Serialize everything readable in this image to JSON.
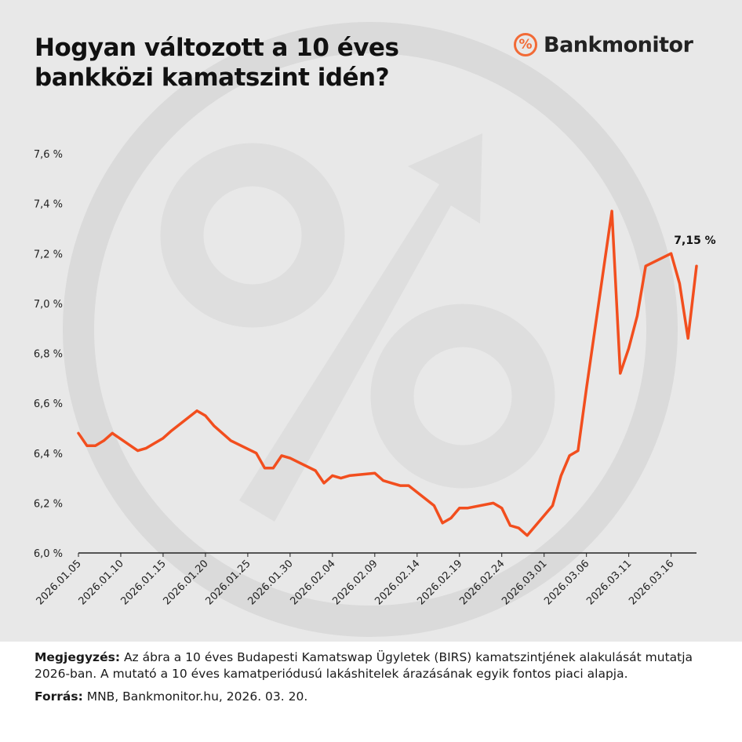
{
  "header": {
    "title_line1": "Hogyan változott a 10 éves",
    "title_line2": "bankközi kamatszint idén?"
  },
  "brand": {
    "logo_symbol": "%",
    "name": "Bankmonitor",
    "accent_color": "#f26a36"
  },
  "chart_data": {
    "type": "line",
    "title": "Hogyan változott a 10 éves bankközi kamatszint idén?",
    "xlabel": "",
    "ylabel": "",
    "ylim": [
      6.0,
      7.6
    ],
    "yticks": [
      6.0,
      6.2,
      6.4,
      6.6,
      6.8,
      7.0,
      7.2,
      7.4,
      7.6
    ],
    "ytick_labels": [
      "6,0 %",
      "6,2 %",
      "6,4 %",
      "6,6 %",
      "6,8 %",
      "7,0 %",
      "7,2 %",
      "7,4 %",
      "7,6 %"
    ],
    "xtick_labels": [
      "2026.01.05",
      "2026.01.10",
      "2026.01.15",
      "2026.01.20",
      "2026.01.25",
      "2026.01.30",
      "2026.02.04",
      "2026.02.09",
      "2026.02.14",
      "2026.02.19",
      "2026.02.24",
      "2026.03.01",
      "2026.03.06",
      "2026.03.11",
      "2026.03.16"
    ],
    "grid": false,
    "line_color": "#f24e1e",
    "series": [
      {
        "name": "",
        "x": [
          "2026.01.05",
          "2026.01.06",
          "2026.01.07",
          "2026.01.08",
          "2026.01.09",
          "2026.01.12",
          "2026.01.13",
          "2026.01.14",
          "2026.01.15",
          "2026.01.16",
          "2026.01.19",
          "2026.01.20",
          "2026.01.21",
          "2026.01.22",
          "2026.01.23",
          "2026.01.26",
          "2026.01.27",
          "2026.01.28",
          "2026.01.29",
          "2026.01.30",
          "2026.02.02",
          "2026.02.03",
          "2026.02.04",
          "2026.02.05",
          "2026.02.06",
          "2026.02.09",
          "2026.02.10",
          "2026.02.11",
          "2026.02.12",
          "2026.02.13",
          "2026.02.16",
          "2026.02.17",
          "2026.02.18",
          "2026.02.19",
          "2026.02.20",
          "2026.02.23",
          "2026.02.24",
          "2026.02.25",
          "2026.02.26",
          "2026.02.27",
          "2026.03.02",
          "2026.03.03",
          "2026.03.04",
          "2026.03.05",
          "2026.03.06",
          "2026.03.09",
          "2026.03.10",
          "2026.03.11",
          "2026.03.12",
          "2026.03.13",
          "2026.03.16",
          "2026.03.17",
          "2026.03.18",
          "2026.03.19"
        ],
        "values": [
          6.48,
          6.43,
          6.43,
          6.45,
          6.48,
          6.41,
          6.42,
          6.44,
          6.46,
          6.49,
          6.57,
          6.55,
          6.51,
          6.48,
          6.45,
          6.4,
          6.34,
          6.34,
          6.39,
          6.38,
          6.33,
          6.28,
          6.31,
          6.3,
          6.31,
          6.32,
          6.29,
          6.28,
          6.27,
          6.27,
          6.19,
          6.12,
          6.14,
          6.18,
          6.18,
          6.2,
          6.18,
          6.11,
          6.1,
          6.07,
          6.19,
          6.31,
          6.39,
          6.41,
          6.66,
          7.37,
          6.72,
          6.82,
          6.95,
          7.15,
          7.2,
          7.08,
          6.86,
          7.15
        ]
      }
    ],
    "annotation": "7,15 %"
  },
  "footer": {
    "note_label": "Megjegyzés:",
    "note_text": " Az ábra a 10 éves Budapesti Kamatswap Ügyletek (BIRS) kamatszintjének alakulását mutatja 2026-ban. A mutató a 10 éves kamatperiódusú lakáshitelek árazásának egyik fontos piaci alapja.",
    "source_label": "Forrás:",
    "source_text": " MNB, Bankmonitor.hu, 2026. 03. 20."
  }
}
